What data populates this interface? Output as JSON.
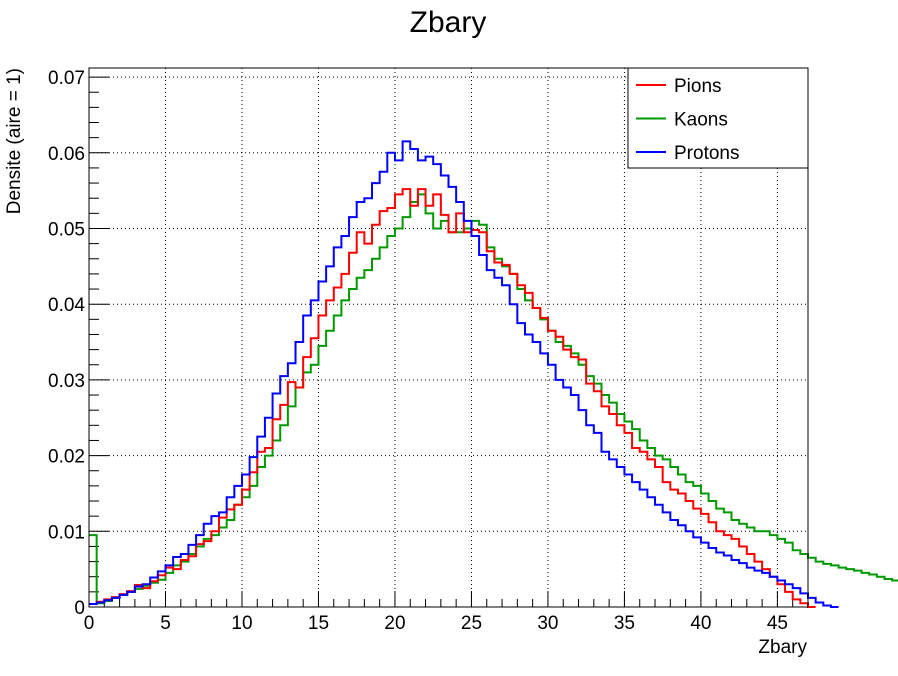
{
  "chart_data": {
    "type": "line",
    "title": "Zbary",
    "xlabel": "Zbary",
    "ylabel": "Densite (aire = 1)",
    "xlim": [
      0,
      47
    ],
    "ylim": [
      0,
      0.0712
    ],
    "x_ticks": [
      "0",
      "5",
      "10",
      "15",
      "20",
      "25",
      "30",
      "35",
      "40",
      "45"
    ],
    "y_ticks": [
      "0",
      "0.01",
      "0.02",
      "0.03",
      "0.04",
      "0.05",
      "0.06",
      "0.07"
    ],
    "grid": true,
    "legend_position": "top-right",
    "bin_width": 0.5,
    "series": [
      {
        "name": "Pions",
        "color": "#ff0000",
        "values": [
          0.0004,
          0.0007,
          0.001,
          0.0013,
          0.0017,
          0.0021,
          0.0029,
          0.0025,
          0.0034,
          0.0042,
          0.0052,
          0.005,
          0.0062,
          0.0067,
          0.0083,
          0.0087,
          0.01,
          0.0118,
          0.0129,
          0.0135,
          0.0155,
          0.0178,
          0.0205,
          0.021,
          0.0248,
          0.0267,
          0.0297,
          0.029,
          0.033,
          0.0355,
          0.0385,
          0.0405,
          0.0422,
          0.044,
          0.0468,
          0.0495,
          0.048,
          0.0505,
          0.0523,
          0.0527,
          0.0545,
          0.0552,
          0.053,
          0.0552,
          0.053,
          0.0545,
          0.0518,
          0.0495,
          0.052,
          0.0495,
          0.0498,
          0.0495,
          0.047,
          0.0455,
          0.0452,
          0.044,
          0.0425,
          0.0415,
          0.0395,
          0.0382,
          0.0365,
          0.0357,
          0.034,
          0.033,
          0.0327,
          0.0295,
          0.0285,
          0.0265,
          0.0255,
          0.024,
          0.023,
          0.021,
          0.0205,
          0.0195,
          0.0185,
          0.0165,
          0.0155,
          0.015,
          0.014,
          0.013,
          0.0123,
          0.0112,
          0.01,
          0.0095,
          0.009,
          0.008,
          0.007,
          0.006,
          0.005,
          0.004,
          0.003,
          0.002,
          0.001,
          0.0005,
          0.0
        ]
      },
      {
        "name": "Kaons",
        "color": "#009900",
        "values": [
          0.0095,
          0.0005,
          0.0008,
          0.0012,
          0.0016,
          0.002,
          0.0024,
          0.0028,
          0.0032,
          0.0036,
          0.0045,
          0.0055,
          0.006,
          0.007,
          0.008,
          0.009,
          0.0095,
          0.0105,
          0.0115,
          0.0135,
          0.0145,
          0.016,
          0.0185,
          0.02,
          0.022,
          0.024,
          0.0265,
          0.029,
          0.031,
          0.032,
          0.0345,
          0.0365,
          0.0385,
          0.0405,
          0.042,
          0.0435,
          0.0445,
          0.046,
          0.0475,
          0.049,
          0.05,
          0.0515,
          0.0535,
          0.0545,
          0.052,
          0.05,
          0.051,
          0.0495,
          0.0495,
          0.05,
          0.051,
          0.0505,
          0.0475,
          0.046,
          0.045,
          0.044,
          0.042,
          0.0405,
          0.0395,
          0.038,
          0.0365,
          0.035,
          0.0345,
          0.0335,
          0.032,
          0.0305,
          0.0295,
          0.028,
          0.027,
          0.0255,
          0.0245,
          0.0235,
          0.022,
          0.021,
          0.02,
          0.0195,
          0.0185,
          0.0175,
          0.0165,
          0.016,
          0.015,
          0.014,
          0.013,
          0.0125,
          0.0115,
          0.011,
          0.0105,
          0.01,
          0.01,
          0.0095,
          0.009,
          0.0085,
          0.0075,
          0.007,
          0.0065,
          0.006,
          0.0057,
          0.0055,
          0.0052,
          0.005,
          0.0048,
          0.0045,
          0.0043,
          0.004,
          0.0037,
          0.0035,
          0.0032,
          0.003,
          0.0028,
          0.0026,
          0.0024,
          0.0022,
          0.002,
          0.0018,
          0.0015,
          0.0013,
          0.001,
          0.0008,
          0.0005,
          0.0002
        ]
      },
      {
        "name": "Protons",
        "color": "#0000ff",
        "values": [
          0.0004,
          0.0006,
          0.0009,
          0.0012,
          0.0016,
          0.002,
          0.0027,
          0.003,
          0.0039,
          0.0047,
          0.0055,
          0.0066,
          0.007,
          0.0082,
          0.0095,
          0.011,
          0.012,
          0.0125,
          0.0145,
          0.016,
          0.0175,
          0.0198,
          0.0225,
          0.025,
          0.0282,
          0.0305,
          0.0322,
          0.035,
          0.0385,
          0.0405,
          0.043,
          0.045,
          0.0475,
          0.049,
          0.0515,
          0.0535,
          0.054,
          0.056,
          0.0575,
          0.06,
          0.059,
          0.0615,
          0.0605,
          0.059,
          0.0595,
          0.0585,
          0.057,
          0.0555,
          0.0535,
          0.051,
          0.049,
          0.0465,
          0.0445,
          0.0435,
          0.0425,
          0.04,
          0.0375,
          0.036,
          0.035,
          0.0335,
          0.032,
          0.03,
          0.029,
          0.028,
          0.026,
          0.024,
          0.023,
          0.0205,
          0.0195,
          0.0185,
          0.0175,
          0.0165,
          0.0155,
          0.0145,
          0.0135,
          0.0125,
          0.0115,
          0.0108,
          0.01,
          0.0092,
          0.0085,
          0.0078,
          0.0072,
          0.0068,
          0.0062,
          0.0058,
          0.0052,
          0.0048,
          0.0045,
          0.004,
          0.0035,
          0.003,
          0.0025,
          0.0018,
          0.0012,
          0.0006,
          0.0002,
          0.0
        ]
      }
    ]
  }
}
